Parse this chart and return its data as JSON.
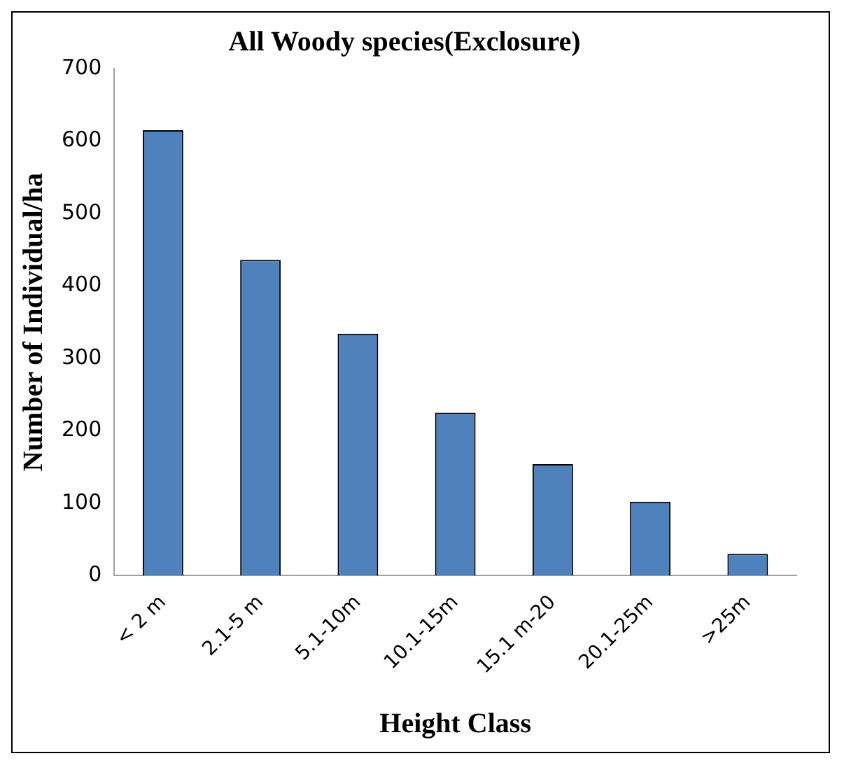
{
  "chart_data": {
    "type": "bar",
    "title": "All Woody species(Exclosure)",
    "xlabel": "Height Class",
    "ylabel": "Number of Individual/ha",
    "categories": [
      "< 2 m",
      "2.1-5 m",
      "5.1-10m",
      "10.1-15m",
      "15.1 m-20",
      "20.1-25m",
      ">25m"
    ],
    "values": [
      615,
      436,
      334,
      225,
      154,
      102,
      30
    ],
    "color": "#4f81bd",
    "ylim": [
      0,
      700
    ],
    "yticks": [
      0,
      100,
      200,
      300,
      400,
      500,
      600,
      700
    ],
    "grid": false,
    "legend": false
  }
}
